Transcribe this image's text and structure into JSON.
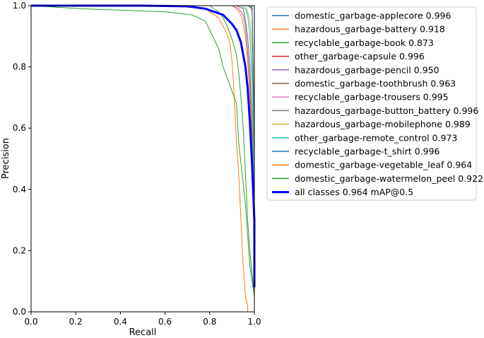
{
  "chart_data": {
    "type": "line",
    "title": "",
    "xlabel": "Recall",
    "ylabel": "Precision",
    "xlim": [
      0,
      1
    ],
    "ylim": [
      0,
      1
    ],
    "xticks": [
      "0.0",
      "0.2",
      "0.4",
      "0.6",
      "0.8",
      "1.0"
    ],
    "yticks": [
      "0.0",
      "0.2",
      "0.4",
      "0.6",
      "0.8",
      "1.0"
    ],
    "grid": false,
    "legend_position": "outside-right",
    "series": [
      {
        "name": "domestic_garbage-applecore 0.996",
        "color": "#1f77b4",
        "width": 1,
        "x": [
          0,
          0.97,
          0.99,
          1.0,
          1.0
        ],
        "y": [
          1,
          1,
          1,
          0.5,
          0
        ]
      },
      {
        "name": "hazardous_garbage-battery 0.918",
        "color": "#ff7f0e",
        "width": 1,
        "x": [
          0,
          0.6,
          0.78,
          0.84,
          0.87,
          0.89,
          0.9,
          0.91,
          0.92,
          0.93,
          0.94,
          0.95,
          0.96,
          0.97,
          0.97
        ],
        "y": [
          1,
          1,
          0.99,
          0.96,
          0.92,
          0.88,
          0.82,
          0.7,
          0.55,
          0.45,
          0.3,
          0.15,
          0.05,
          0.02,
          0
        ]
      },
      {
        "name": "recyclable_garbage-book 0.873",
        "color": "#2ca02c",
        "width": 1,
        "x": [
          0,
          0.22,
          0.6,
          0.72,
          0.78,
          0.8,
          0.82,
          0.84,
          0.86,
          0.88,
          0.9,
          0.92,
          0.93,
          0.95,
          0.96,
          0.97,
          0.98,
          1.0,
          1.0
        ],
        "y": [
          1,
          0.99,
          0.98,
          0.97,
          0.95,
          0.92,
          0.89,
          0.86,
          0.8,
          0.76,
          0.72,
          0.68,
          0.55,
          0.42,
          0.35,
          0.25,
          0.15,
          0.05,
          0
        ]
      },
      {
        "name": "other_garbage-capsule 0.996",
        "color": "#d62728",
        "width": 1,
        "x": [
          0,
          0.98,
          0.99,
          1.0,
          1.0
        ],
        "y": [
          1,
          1,
          0.99,
          0.6,
          0
        ]
      },
      {
        "name": "hazardous_garbage-pencil 0.950",
        "color": "#9467bd",
        "width": 1,
        "x": [
          0,
          0.9,
          0.93,
          0.95,
          0.96,
          0.97,
          0.98,
          0.99,
          1.0,
          1.0
        ],
        "y": [
          1,
          1,
          0.99,
          0.97,
          0.93,
          0.85,
          0.75,
          0.5,
          0.2,
          0
        ]
      },
      {
        "name": "domestic_garbage-toothbrush 0.963",
        "color": "#8c564b",
        "width": 1,
        "x": [
          0,
          0.92,
          0.95,
          0.96,
          0.97,
          0.98,
          0.99,
          1.0,
          1.0
        ],
        "y": [
          1,
          1,
          0.99,
          0.95,
          0.9,
          0.8,
          0.6,
          0.2,
          0
        ]
      },
      {
        "name": "recyclable_garbage-trousers 0.995",
        "color": "#e377c2",
        "width": 1,
        "x": [
          0,
          0.98,
          0.99,
          1.0,
          1.0
        ],
        "y": [
          1,
          1,
          0.98,
          0.5,
          0
        ]
      },
      {
        "name": "hazardous_garbage-button_battery 0.996",
        "color": "#7f7f7f",
        "width": 1,
        "x": [
          0,
          0.97,
          0.99,
          1.0,
          1.0
        ],
        "y": [
          1,
          1,
          0.99,
          0.4,
          0
        ]
      },
      {
        "name": "hazardous_garbage-mobilephone 0.989",
        "color": "#bcbd22",
        "width": 1,
        "x": [
          0,
          0.96,
          0.97,
          0.98,
          0.99,
          1.0,
          1.0
        ],
        "y": [
          1,
          1,
          0.98,
          0.95,
          0.85,
          0.3,
          0
        ]
      },
      {
        "name": "other_garbage-remote_control 0.973",
        "color": "#17becf",
        "width": 1,
        "x": [
          0,
          0.94,
          0.96,
          0.97,
          0.98,
          0.99,
          1.0,
          1.0
        ],
        "y": [
          1,
          1,
          0.99,
          0.97,
          0.9,
          0.75,
          0.3,
          0
        ]
      },
      {
        "name": "recyclable_garbage-t_shirt 0.996",
        "color": "#1f77b4",
        "width": 1,
        "x": [
          0,
          0.98,
          0.99,
          1.0,
          1.0
        ],
        "y": [
          1,
          1,
          0.99,
          0.55,
          0
        ]
      },
      {
        "name": "domestic_garbage-vegetable_leaf 0.964",
        "color": "#ff7f0e",
        "width": 1,
        "x": [
          0,
          0.9,
          0.92,
          0.94,
          0.95,
          0.96,
          0.97,
          0.98,
          0.99,
          1.0,
          1.0
        ],
        "y": [
          1,
          1,
          0.99,
          0.97,
          0.94,
          0.9,
          0.82,
          0.7,
          0.55,
          0.3,
          0
        ]
      },
      {
        "name": "domestic_garbage-watermelon_peel 0.922",
        "color": "#2ca02c",
        "width": 1,
        "x": [
          0,
          0.8,
          0.84,
          0.86,
          0.88,
          0.9,
          0.92,
          0.93,
          0.94,
          0.95,
          0.96,
          0.97,
          0.98,
          0.99,
          1.0,
          1.0
        ],
        "y": [
          1,
          1,
          0.98,
          0.96,
          0.93,
          0.89,
          0.84,
          0.78,
          0.7,
          0.6,
          0.45,
          0.3,
          0.2,
          0.12,
          0.05,
          0
        ]
      },
      {
        "name": "all classes 0.964 mAP@0.5",
        "color": "#0000ff",
        "width": 3,
        "x": [
          0,
          0.5,
          0.7,
          0.78,
          0.82,
          0.86,
          0.88,
          0.9,
          0.92,
          0.94,
          0.95,
          0.96,
          0.97,
          0.98,
          0.99,
          1.0,
          1.0
        ],
        "y": [
          1,
          1,
          0.998,
          0.99,
          0.98,
          0.97,
          0.955,
          0.94,
          0.92,
          0.88,
          0.84,
          0.8,
          0.73,
          0.62,
          0.48,
          0.3,
          0.08
        ]
      }
    ]
  }
}
